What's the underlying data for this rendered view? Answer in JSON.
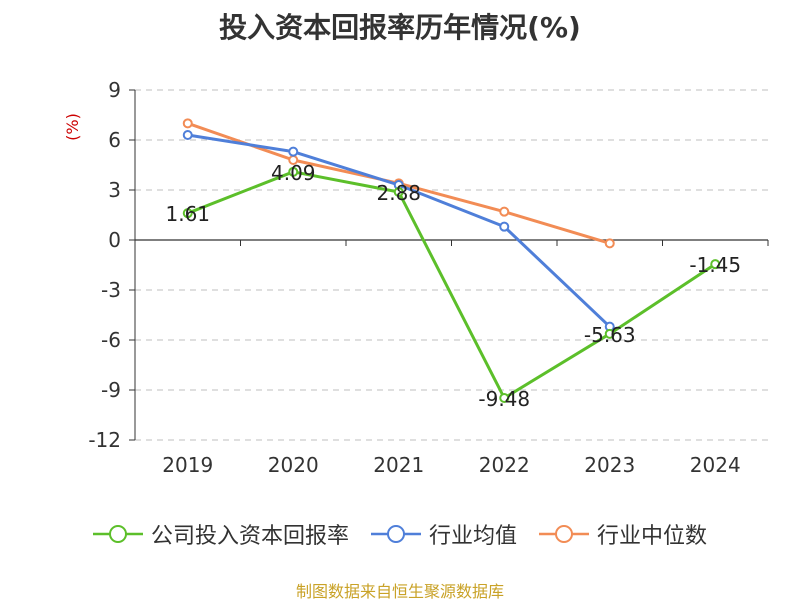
{
  "title": "投入资本回报率历年情况(%)",
  "source": "制图数据来自恒生聚源数据库",
  "chart_data": {
    "type": "line",
    "title": "投入资本回报率历年情况(%)",
    "ylabel": "(%)",
    "xlabel": "",
    "categories": [
      "2019",
      "2020",
      "2021",
      "2022",
      "2023",
      "2024"
    ],
    "ylim": [
      -12,
      9
    ],
    "yticks": [
      9,
      6,
      3,
      0,
      -3,
      -6,
      -9,
      -12
    ],
    "grid": true,
    "legend_position": "bottom",
    "series": [
      {
        "name": "公司投入资本回报率",
        "color": "#5cbf2a",
        "values": [
          1.61,
          4.09,
          2.88,
          -9.48,
          -5.63,
          -1.45
        ],
        "labels": [
          "1.61",
          "4.09",
          "2.88",
          "-9.48",
          "-5.63",
          "-1.45"
        ]
      },
      {
        "name": "行业均值",
        "color": "#4f7fd9",
        "values": [
          6.3,
          5.3,
          3.3,
          0.8,
          -5.2,
          null
        ]
      },
      {
        "name": "行业中位数",
        "color": "#f28c55",
        "values": [
          7.0,
          4.8,
          3.4,
          1.7,
          -0.2,
          null
        ]
      }
    ]
  }
}
